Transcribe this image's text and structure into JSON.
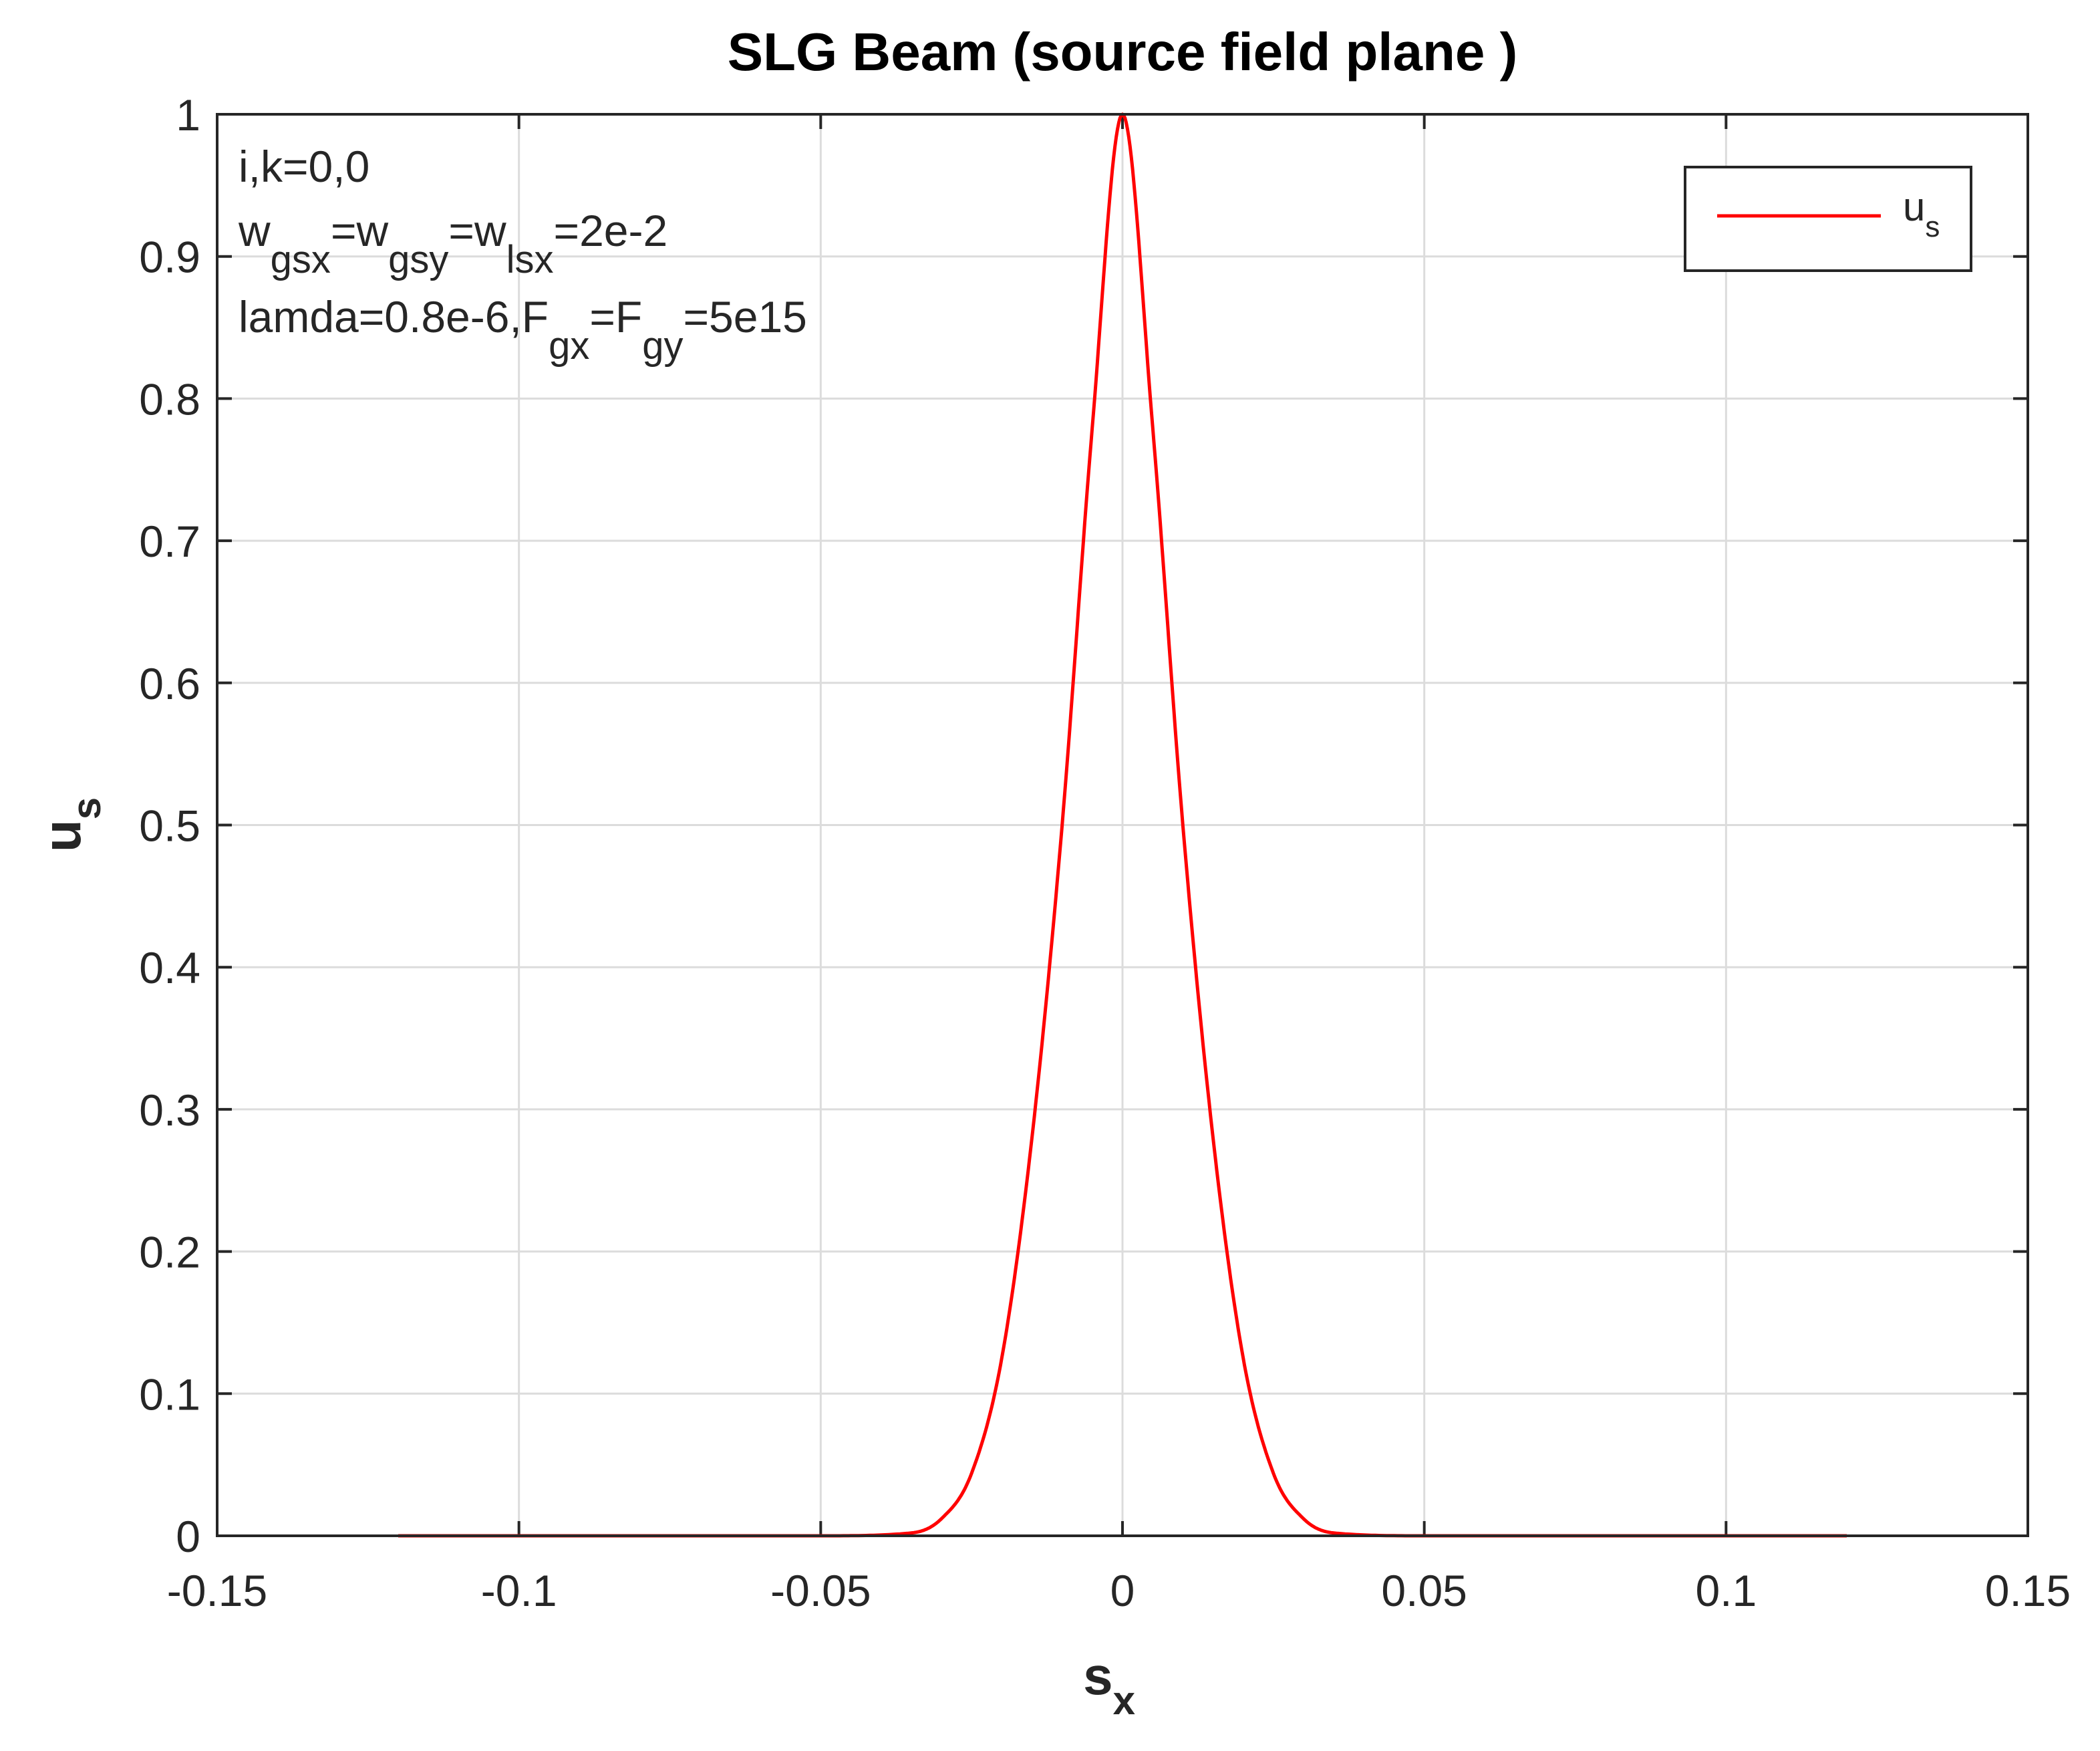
{
  "chart_data": {
    "type": "line",
    "title": "SLG  Beam (source field plane )",
    "xlabel": {
      "main": "s",
      "sub": "x"
    },
    "ylabel": {
      "main": "u",
      "sub": "s"
    },
    "xlim": [
      -0.15,
      0.15
    ],
    "ylim": [
      0,
      1
    ],
    "xticks": [
      -0.15,
      -0.1,
      -0.05,
      0,
      0.05,
      0.1,
      0.15
    ],
    "xtick_labels": [
      "-0.15",
      "-0.1",
      "-0.05",
      "0",
      "0.05",
      "0.1",
      "0.15"
    ],
    "yticks": [
      0,
      0.1,
      0.2,
      0.3,
      0.4,
      0.5,
      0.6,
      0.7,
      0.8,
      0.9,
      1
    ],
    "ytick_labels": [
      "0",
      "0.1",
      "0.2",
      "0.3",
      "0.4",
      "0.5",
      "0.6",
      "0.7",
      "0.8",
      "0.9",
      "1"
    ],
    "grid": true,
    "legend_position": "top-right",
    "series": [
      {
        "name": {
          "main": "u",
          "sub": "s"
        },
        "color": "#ff0000",
        "x": [
          -0.12,
          -0.05,
          -0.035,
          -0.03,
          -0.025,
          -0.02,
          -0.015,
          -0.01,
          -0.005,
          0,
          0.005,
          0.01,
          0.015,
          0.02,
          0.025,
          0.03,
          0.035,
          0.05,
          0.12
        ],
        "y": [
          0,
          0,
          0.002,
          0.012,
          0.044,
          0.125,
          0.28,
          0.5,
          0.78,
          1.0,
          0.78,
          0.5,
          0.28,
          0.125,
          0.044,
          0.012,
          0.002,
          0,
          0
        ]
      }
    ],
    "annotations": [
      {
        "parts": [
          {
            "t": "i,k=0,0"
          }
        ]
      },
      {
        "parts": [
          {
            "t": "w"
          },
          {
            "t": "gsx",
            "sub": true
          },
          {
            "t": "=w"
          },
          {
            "t": "gsy",
            "sub": true
          },
          {
            "t": "=w"
          },
          {
            "t": "lsx",
            "sub": true
          },
          {
            "t": "=2e-2"
          }
        ]
      },
      {
        "parts": [
          {
            "t": "lamda=0.8e-6,F"
          },
          {
            "t": "gx",
            "sub": true
          },
          {
            "t": "=F"
          },
          {
            "t": "gy",
            "sub": true
          },
          {
            "t": "=5e15"
          }
        ]
      }
    ]
  }
}
